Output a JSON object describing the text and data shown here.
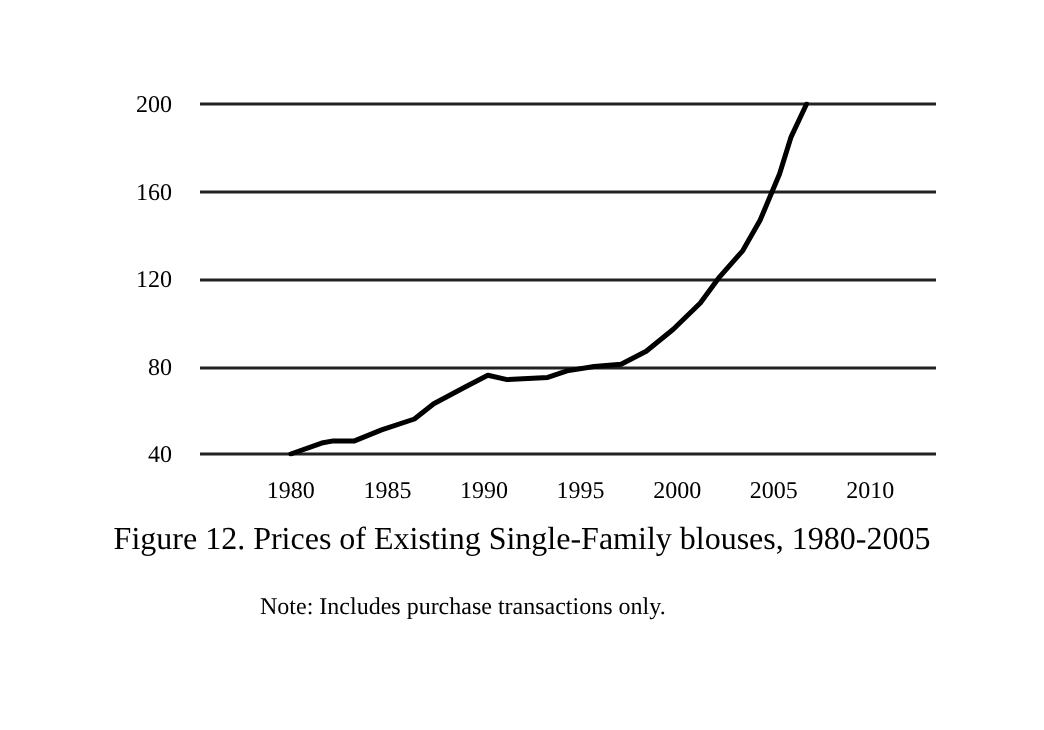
{
  "chart_data": {
    "type": "line",
    "title": "Figure 12. Prices of Existing Single-Family blouses, 1980-2005",
    "annotations": [
      "Note: Includes purchase transactions only."
    ],
    "x": [
      1980,
      1981.6,
      1982.2,
      1983.3,
      1984.7,
      1986.4,
      1987.4,
      1989.1,
      1990.2,
      1991.2,
      1993.3,
      1994.3,
      1995.7,
      1997.1,
      1998.4,
      1999.8,
      2001.2,
      2002.2,
      2003.4,
      2004.3,
      2005.3,
      2005.9,
      2006.7
    ],
    "series": [
      {
        "color": "#000000",
        "values": [
          40,
          45,
          46,
          46,
          51,
          56,
          63,
          71,
          76,
          74,
          75,
          78,
          80,
          81,
          87,
          97,
          109,
          121,
          133,
          147,
          168,
          185,
          200
        ]
      }
    ],
    "xlim": [
      1975.3,
      2013.4
    ],
    "xticks": [
      1980,
      1985,
      1990,
      1995,
      2000,
      2005,
      2010
    ],
    "ylim": [
      40,
      200
    ],
    "yticks": [
      40,
      80,
      120,
      160,
      200
    ],
    "grid": "y",
    "marker": "none",
    "line_style": "solid"
  }
}
